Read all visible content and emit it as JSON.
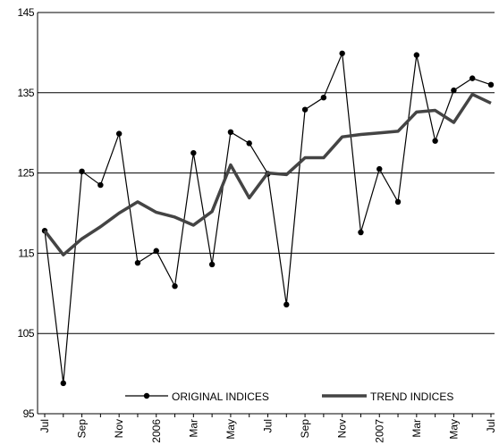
{
  "chart_data": {
    "type": "line",
    "categories": [
      "Jul",
      null,
      "Sep",
      null,
      "Nov",
      null,
      "2006",
      null,
      "Mar",
      null,
      "May",
      null,
      "Jul",
      null,
      "Sep",
      null,
      "Nov",
      null,
      "2007",
      null,
      "Mar",
      null,
      "May",
      null,
      "Jul"
    ],
    "series": [
      {
        "name": "ORIGINAL INDICES",
        "color": "#000000",
        "values": [
          117.8,
          98.8,
          125.2,
          123.5,
          129.9,
          113.8,
          115.3,
          110.9,
          127.5,
          113.6,
          130.1,
          128.7,
          124.9,
          108.6,
          132.9,
          134.4,
          139.9,
          117.6,
          125.5,
          121.4,
          139.7,
          129,
          135.3,
          136.8,
          136
        ]
      },
      {
        "name": "TREND INDICES",
        "color": "#444444",
        "values": [
          117.8,
          114.8,
          116.8,
          118.3,
          120,
          121.4,
          120.1,
          119.5,
          118.5,
          120.2,
          126,
          121.9,
          125,
          124.8,
          126.9,
          126.9,
          129.5,
          129.8,
          130,
          130.2,
          132.6,
          132.8,
          131.3,
          134.8,
          133.7
        ]
      }
    ],
    "ylim": [
      95,
      145
    ],
    "yticks": [
      95,
      105,
      115,
      125,
      135,
      145
    ],
    "grid": true
  }
}
